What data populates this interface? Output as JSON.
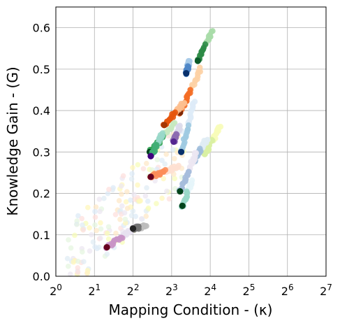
{
  "chart_data": {
    "type": "scatter",
    "title": "",
    "xlabel": "Mapping Condition - (κ)",
    "ylabel": "Knowledge Gain - (G)",
    "xscale": "log2",
    "xlim": [
      1,
      128
    ],
    "ylim": [
      0,
      0.65
    ],
    "x_ticks": [
      {
        "value": 1,
        "base": "2",
        "exp": "0"
      },
      {
        "value": 2,
        "base": "2",
        "exp": "1"
      },
      {
        "value": 4,
        "base": "2",
        "exp": "2"
      },
      {
        "value": 8,
        "base": "2",
        "exp": "3"
      },
      {
        "value": 16,
        "base": "2",
        "exp": "4"
      },
      {
        "value": 32,
        "base": "2",
        "exp": "5"
      },
      {
        "value": 64,
        "base": "2",
        "exp": "6"
      },
      {
        "value": 128,
        "base": "2",
        "exp": "7"
      }
    ],
    "y_ticks": [
      {
        "value": 0.0,
        "label": "0.0"
      },
      {
        "value": 0.1,
        "label": "0.1"
      },
      {
        "value": 0.2,
        "label": "0.2"
      },
      {
        "value": 0.3,
        "label": "0.3"
      },
      {
        "value": 0.4,
        "label": "0.4"
      },
      {
        "value": 0.5,
        "label": "0.5"
      },
      {
        "value": 0.6,
        "label": "0.6"
      }
    ],
    "grid": true,
    "series": [
      {
        "color": "#2e8b46",
        "light": "#a8dba8",
        "start": [
          16.5,
          0.59
        ],
        "end": [
          12.8,
          0.52
        ],
        "endColor": "#0b5a2a"
      },
      {
        "color": "#4f86c6",
        "light": "#a9cbe8",
        "start": [
          11.0,
          0.52
        ],
        "end": [
          10.4,
          0.49
        ],
        "endColor": "#08306b"
      },
      {
        "color": "#f46d25",
        "light": "#fdd2a5",
        "start": [
          13.5,
          0.5
        ],
        "end": [
          9.3,
          0.395
        ],
        "endColor": "#7f2704"
      },
      {
        "color": "#e6550d",
        "light": "#fdbf8f",
        "start": [
          10.0,
          0.42
        ],
        "end": [
          7.0,
          0.365
        ],
        "endColor": "#a63603"
      },
      {
        "color": "#31a354",
        "light": "#c7e9c0",
        "start": [
          8.5,
          0.37
        ],
        "end": [
          5.4,
          0.3
        ],
        "endColor": "#00441b"
      },
      {
        "color": "#41ae76",
        "light": "#99d8c9",
        "start": [
          6.8,
          0.345
        ],
        "end": [
          5.5,
          0.29
        ],
        "endColor": "#3f007d"
      },
      {
        "color": "#9ecae1",
        "light": "#deebf7",
        "start": [
          12.0,
          0.42
        ],
        "end": [
          9.5,
          0.3
        ],
        "endColor": "#08306b"
      },
      {
        "color": "#8c6bb1",
        "light": "#dadaeb",
        "start": [
          9.2,
          0.36
        ],
        "end": [
          8.3,
          0.325
        ],
        "endColor": "#54278f"
      },
      {
        "color": "#fc8d59",
        "light": "#fee0d2",
        "start": [
          9.0,
          0.265
        ],
        "end": [
          5.5,
          0.24
        ],
        "endColor": "#67001f"
      },
      {
        "color": "#d9f0a3",
        "light": "#f7fcb9",
        "start": [
          19.0,
          0.36
        ],
        "end": [
          14.5,
          0.295
        ],
        "endColor": "#d9f0a3"
      },
      {
        "color": "#9ebcda",
        "light": "#e0ecf4",
        "start": [
          15.0,
          0.33
        ],
        "end": [
          12.0,
          0.28
        ],
        "endColor": "#9ebcda"
      },
      {
        "color": "#a6bddb",
        "light": "#ece7f2",
        "start": [
          12.5,
          0.3
        ],
        "end": [
          9.3,
          0.205
        ],
        "endColor": "#00441b"
      },
      {
        "color": "#99d8c9",
        "light": "#e5f5f9",
        "start": [
          11.5,
          0.23
        ],
        "end": [
          9.7,
          0.17
        ],
        "endColor": "#00441b"
      },
      {
        "color": "#c994c7",
        "light": "#e7e1ef",
        "start": [
          4.2,
          0.12
        ],
        "end": [
          2.5,
          0.07
        ],
        "endColor": "#67001f"
      },
      {
        "color": "#737373",
        "light": "#bdbdbd",
        "start": [
          5.0,
          0.12
        ],
        "end": [
          4.0,
          0.115
        ],
        "endColor": "#252525"
      }
    ]
  }
}
